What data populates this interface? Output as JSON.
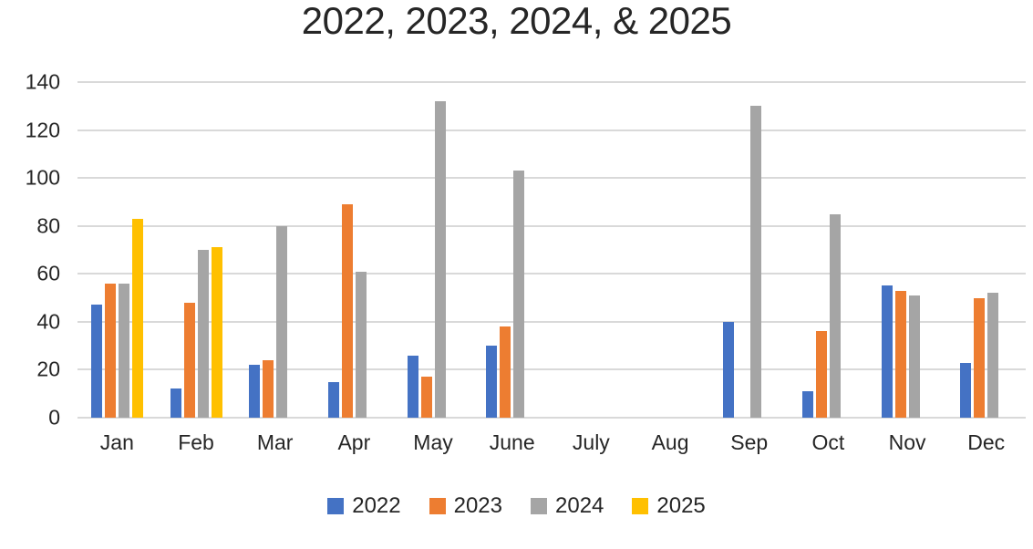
{
  "page": {
    "background": "#ffffff"
  },
  "chart_data": {
    "type": "bar",
    "title": "2022, 2023, 2024, & 2025",
    "categories": [
      "Jan",
      "Feb",
      "Mar",
      "Apr",
      "May",
      "June",
      "July",
      "Aug",
      "Sep",
      "Oct",
      "Nov",
      "Dec"
    ],
    "series": [
      {
        "name": "2022",
        "color": "#4472C4",
        "values": [
          47,
          12,
          22,
          15,
          26,
          30,
          null,
          null,
          40,
          11,
          55,
          23
        ]
      },
      {
        "name": "2023",
        "color": "#ED7D31",
        "values": [
          56,
          48,
          24,
          89,
          17,
          38,
          null,
          null,
          null,
          36,
          53,
          50
        ]
      },
      {
        "name": "2024",
        "color": "#A5A5A5",
        "values": [
          56,
          70,
          80,
          61,
          132,
          103,
          null,
          null,
          130,
          85,
          51,
          52
        ]
      },
      {
        "name": "2025",
        "color": "#FFC000",
        "values": [
          83,
          71,
          null,
          null,
          null,
          null,
          null,
          null,
          null,
          null,
          null,
          null
        ]
      }
    ],
    "ylim": [
      0,
      140
    ],
    "yticks": [
      0,
      20,
      40,
      60,
      80,
      100,
      120,
      140
    ],
    "grid": true,
    "gridline_color": "#D9D9D9",
    "axis_text_color": "#262626",
    "title_color": "#262626",
    "legend_position": "bottom",
    "legend_labels": [
      "2022",
      "2023",
      "2024",
      "2025"
    ]
  }
}
